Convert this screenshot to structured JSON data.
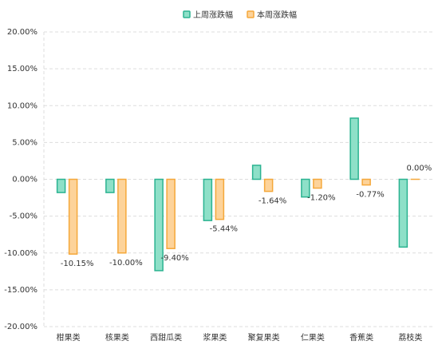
{
  "chart_data": {
    "type": "bar",
    "categories": [
      "柑果类",
      "核果类",
      "西甜瓜类",
      "浆果类",
      "聚复果类",
      "仁果类",
      "香蕉类",
      "荔枝类"
    ],
    "series": [
      {
        "name": "上周涨跌幅",
        "color": "#8ee0c8",
        "stroke": "#2bb391",
        "values": [
          -1.8,
          -1.8,
          -12.4,
          -5.6,
          1.9,
          -2.4,
          8.3,
          -9.2
        ]
      },
      {
        "name": "本周涨跌幅",
        "color": "#fdd39a",
        "stroke": "#f5a83a",
        "values": [
          -10.15,
          -10.0,
          -9.4,
          -5.44,
          -1.64,
          -1.2,
          -0.77,
          0.0
        ],
        "value_labels": [
          "-10.15%",
          "-10.00%",
          "-9.40%",
          "-5.44%",
          "-1.64%",
          "-1.20%",
          "-0.77%",
          "0.00%"
        ]
      }
    ],
    "ylim": [
      -20,
      20
    ],
    "yticks": [
      {
        "value": -20,
        "label": "-20.00%"
      },
      {
        "value": -15,
        "label": "-15.00%"
      },
      {
        "value": -10,
        "label": "-10.00%"
      },
      {
        "value": -5,
        "label": "-5.00%"
      },
      {
        "value": 0,
        "label": "0.00%"
      },
      {
        "value": 5,
        "label": "5.00%"
      },
      {
        "value": 10,
        "label": "10.00%"
      },
      {
        "value": 15,
        "label": "15.00%"
      },
      {
        "value": 20,
        "label": "20.00%"
      }
    ],
    "grid": true,
    "legend": "top"
  }
}
